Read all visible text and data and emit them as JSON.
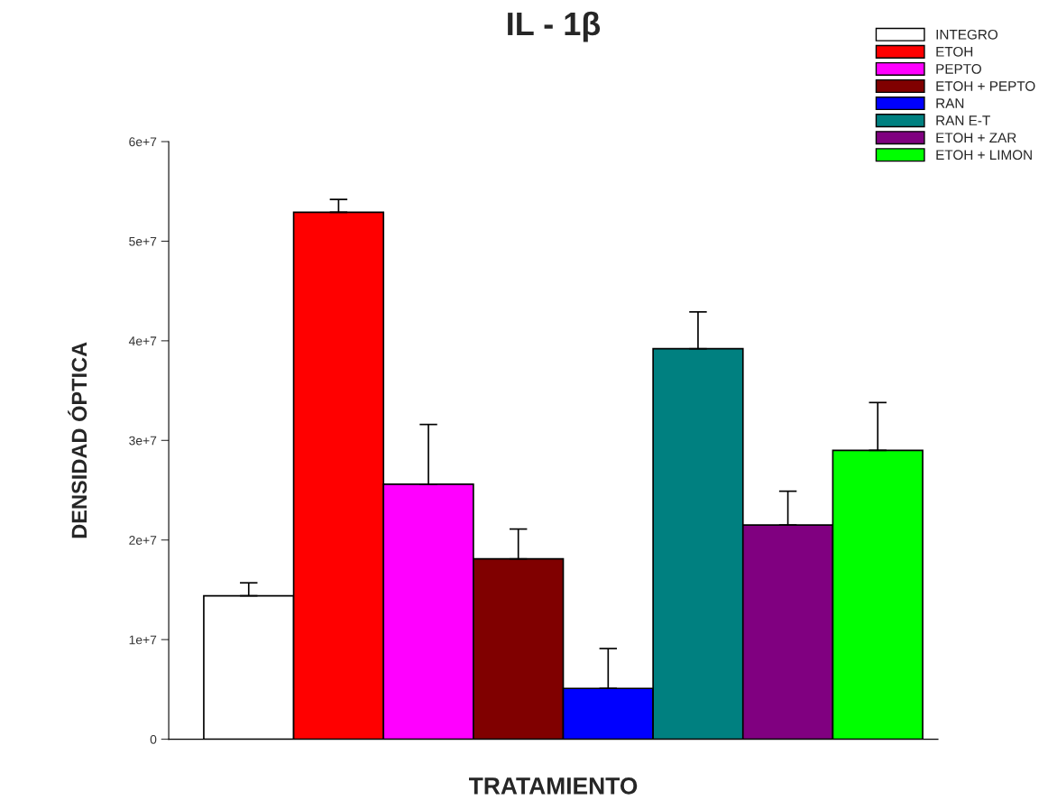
{
  "chart_data": {
    "type": "bar",
    "title": "IL - 1β",
    "xlabel": "TRATAMIENTO",
    "ylabel": "DENSIDAD ÓPTICA",
    "categories": [
      null,
      null,
      null,
      null,
      null,
      null,
      null,
      null
    ],
    "series": [
      {
        "name": "INTEGRO",
        "color": "#ffffff",
        "values": [
          14400000,
          null,
          null,
          null,
          null,
          null,
          null,
          null
        ],
        "errors": [
          [
            14400000,
            15700000
          ],
          null,
          null,
          null,
          null,
          null,
          null,
          null
        ]
      },
      {
        "name": "ETOH",
        "color": "#ff0000",
        "values": [
          null,
          52900000,
          null,
          null,
          null,
          null,
          null,
          null
        ],
        "errors": [
          null,
          [
            52900000,
            54200000
          ],
          null,
          null,
          null,
          null,
          null,
          null
        ]
      },
      {
        "name": "PEPTO",
        "color": "#ff00ff",
        "values": [
          null,
          null,
          25600000,
          null,
          null,
          null,
          null,
          null
        ],
        "errors": [
          null,
          null,
          [
            25600000,
            31600000
          ],
          null,
          null,
          null,
          null,
          null
        ]
      },
      {
        "name": "ETOH + PEPTO",
        "color": "#800000",
        "values": [
          null,
          null,
          null,
          18100000,
          null,
          null,
          null,
          null
        ],
        "errors": [
          null,
          null,
          null,
          [
            18100000,
            21100000
          ],
          null,
          null,
          null,
          null
        ]
      },
      {
        "name": "RAN",
        "color": "#0000ff",
        "values": [
          null,
          null,
          null,
          null,
          5100000,
          null,
          null,
          null
        ],
        "errors": [
          null,
          null,
          null,
          null,
          [
            5100000,
            9100000
          ],
          null,
          null,
          null
        ]
      },
      {
        "name": "RAN E-T",
        "color": "#008080",
        "values": [
          null,
          null,
          null,
          null,
          null,
          39200000,
          null,
          null
        ],
        "errors": [
          null,
          null,
          null,
          null,
          null,
          [
            39200000,
            42900000
          ],
          null,
          null
        ]
      },
      {
        "name": "ETOH + ZAR",
        "color": "#800080",
        "values": [
          null,
          null,
          null,
          null,
          null,
          null,
          21500000,
          null
        ],
        "errors": [
          null,
          null,
          null,
          null,
          null,
          null,
          [
            21500000,
            24900000
          ],
          null
        ]
      },
      {
        "name": "ETOH + LIMON",
        "color": "#00ff00",
        "values": [
          null,
          null,
          null,
          null,
          null,
          null,
          null,
          29000000
        ],
        "errors": [
          null,
          null,
          null,
          null,
          null,
          null,
          null,
          [
            29000000,
            33800000
          ]
        ]
      }
    ],
    "ylim": [
      0,
      60000000
    ],
    "yticks": [
      0,
      {
        "value": 10000000,
        "label": "1e+7"
      },
      {
        "value": 20000000,
        "label": "2e+7"
      },
      {
        "value": 30000000,
        "label": "3e+7"
      },
      {
        "value": 40000000,
        "label": "4e+7"
      },
      {
        "value": 50000000,
        "label": "5e+7"
      },
      {
        "value": 60000000,
        "label": "6e+7"
      }
    ],
    "tick_labels": "y",
    "grid": false,
    "legend": "top right"
  }
}
